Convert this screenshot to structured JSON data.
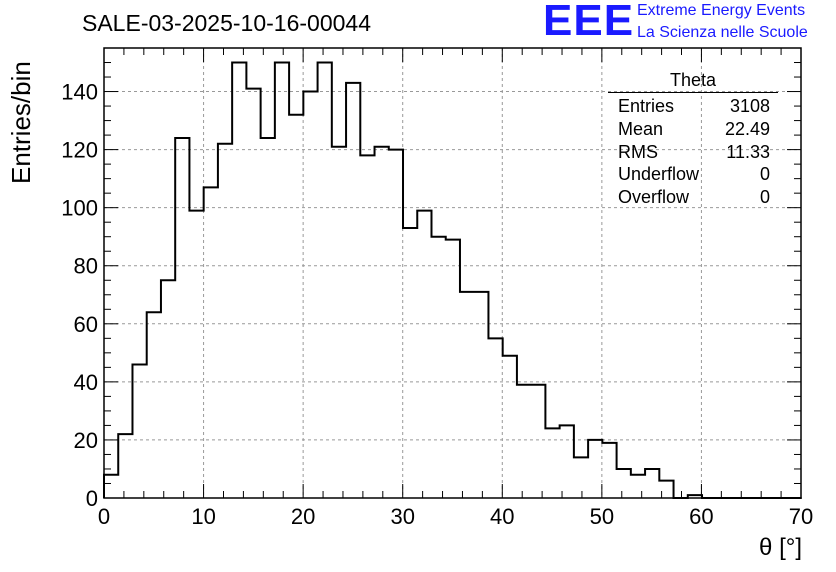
{
  "header": {
    "title": "SALE-03-2025-10-16-00044"
  },
  "logo": {
    "mark": "EEE",
    "line1": "Extreme Energy Events",
    "line2": "La Scienza nelle Scuole",
    "color": "#1a1aff"
  },
  "stats": {
    "title": "Theta",
    "rows": [
      {
        "label": "Entries",
        "value": "3108"
      },
      {
        "label": "Mean",
        "value": "22.49"
      },
      {
        "label": "RMS",
        "value": "11.33"
      },
      {
        "label": "Underflow",
        "value": "0"
      },
      {
        "label": "Overflow",
        "value": "0"
      }
    ]
  },
  "chart_data": {
    "type": "histogram",
    "title": "SALE-03-2025-10-16-00044",
    "xlabel": "θ [°]",
    "ylabel": "Entries/bin",
    "xlim": [
      0,
      70
    ],
    "ylim": [
      0,
      155
    ],
    "grid": true,
    "xticks": [
      0,
      10,
      20,
      30,
      40,
      50,
      60,
      70
    ],
    "yticks": [
      0,
      20,
      40,
      60,
      80,
      100,
      120,
      140
    ],
    "bin_width": 1.43,
    "values": [
      8,
      22,
      46,
      64,
      75,
      124,
      99,
      107,
      122,
      150,
      141,
      124,
      150,
      132,
      140,
      150,
      121,
      143,
      118,
      121,
      120,
      93,
      99,
      90,
      89,
      71,
      71,
      55,
      49,
      39,
      39,
      24,
      25,
      14,
      20,
      19,
      10,
      8,
      10,
      6,
      0,
      1,
      0,
      0,
      0,
      0,
      0,
      0,
      0
    ]
  }
}
